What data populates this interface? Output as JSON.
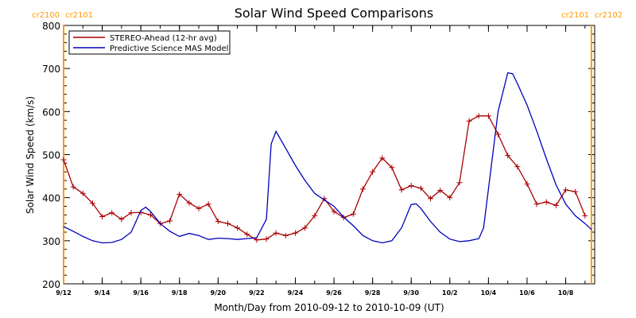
{
  "chart_data": {
    "type": "line",
    "title": "Solar Wind Speed Comparisons",
    "xlabel": "Month/Day from 2010-09-12 to 2010-10-09 (UT)",
    "ylabel": "Solar Wind Speed (km/s)",
    "xlim": [
      "2010-09-12",
      "2010-10-09"
    ],
    "ylim": [
      200,
      800
    ],
    "yticks": [
      200,
      300,
      400,
      500,
      600,
      700,
      800
    ],
    "xticks": [
      {
        "date": "2010-09-12",
        "label": "9/12"
      },
      {
        "date": "2010-09-14",
        "label": "9/14"
      },
      {
        "date": "2010-09-16",
        "label": "9/16"
      },
      {
        "date": "2010-09-18",
        "label": "9/18"
      },
      {
        "date": "2010-09-20",
        "label": "9/20"
      },
      {
        "date": "2010-09-22",
        "label": "9/22"
      },
      {
        "date": "2010-09-24",
        "label": "9/24"
      },
      {
        "date": "2010-09-26",
        "label": "9/26"
      },
      {
        "date": "2010-09-28",
        "label": "9/28"
      },
      {
        "date": "2010-09-30",
        "label": "9/30"
      },
      {
        "date": "2010-10-02",
        "label": "10/2"
      },
      {
        "date": "2010-10-04",
        "label": "10/4"
      },
      {
        "date": "2010-10-06",
        "label": "10/6"
      },
      {
        "date": "2010-10-08",
        "label": "10/8"
      }
    ],
    "grid": false,
    "legend_position": "top-left",
    "carrington_markers": [
      {
        "date": "2010-09-12T00:00",
        "left_label": "cr2100",
        "right_label": "cr2101",
        "color": "#ff9900"
      },
      {
        "date": "2010-10-09T08:00",
        "left_label": "cr2101",
        "right_label": "cr2102",
        "color": "#ff9900"
      }
    ],
    "series": [
      {
        "name": "STEREO-Ahead (12-hr avg)",
        "color": "#aa0000",
        "marker": "+",
        "points": [
          [
            "2010-09-12T00:00",
            488
          ],
          [
            "2010-09-12T12:00",
            425
          ],
          [
            "2010-09-13T00:00",
            410
          ],
          [
            "2010-09-13T12:00",
            387
          ],
          [
            "2010-09-14T00:00",
            356
          ],
          [
            "2010-09-14T12:00",
            365
          ],
          [
            "2010-09-15T00:00",
            350
          ],
          [
            "2010-09-15T12:00",
            365
          ],
          [
            "2010-09-16T00:00",
            366
          ],
          [
            "2010-09-16T12:00",
            360
          ],
          [
            "2010-09-17T00:00",
            340
          ],
          [
            "2010-09-17T12:00",
            346
          ],
          [
            "2010-09-18T00:00",
            408
          ],
          [
            "2010-09-18T12:00",
            388
          ],
          [
            "2010-09-19T00:00",
            375
          ],
          [
            "2010-09-19T12:00",
            385
          ],
          [
            "2010-09-20T00:00",
            345
          ],
          [
            "2010-09-20T12:00",
            340
          ],
          [
            "2010-09-21T00:00",
            330
          ],
          [
            "2010-09-21T12:00",
            315
          ],
          [
            "2010-09-22T00:00",
            302
          ],
          [
            "2010-09-22T12:00",
            304
          ],
          [
            "2010-09-23T00:00",
            318
          ],
          [
            "2010-09-23T12:00",
            312
          ],
          [
            "2010-09-24T00:00",
            318
          ],
          [
            "2010-09-24T12:00",
            330
          ],
          [
            "2010-09-25T00:00",
            358
          ],
          [
            "2010-09-25T12:00",
            398
          ],
          [
            "2010-09-26T00:00",
            368
          ],
          [
            "2010-09-26T12:00",
            354
          ],
          [
            "2010-09-27T00:00",
            362
          ],
          [
            "2010-09-27T12:00",
            420
          ],
          [
            "2010-09-28T00:00",
            460
          ],
          [
            "2010-09-28T12:00",
            492
          ],
          [
            "2010-09-29T00:00",
            470
          ],
          [
            "2010-09-29T12:00",
            418
          ],
          [
            "2010-09-30T00:00",
            428
          ],
          [
            "2010-09-30T12:00",
            422
          ],
          [
            "2010-10-01T00:00",
            398
          ],
          [
            "2010-10-01T12:00",
            417
          ],
          [
            "2010-10-02T00:00",
            400
          ],
          [
            "2010-10-02T12:00",
            435
          ],
          [
            "2010-10-03T00:00",
            578
          ],
          [
            "2010-10-03T12:00",
            590
          ],
          [
            "2010-10-04T00:00",
            590
          ],
          [
            "2010-10-04T12:00",
            547
          ],
          [
            "2010-10-05T00:00",
            498
          ],
          [
            "2010-10-05T12:00",
            472
          ],
          [
            "2010-10-06T00:00",
            432
          ],
          [
            "2010-10-06T12:00",
            385
          ],
          [
            "2010-10-07T00:00",
            390
          ],
          [
            "2010-10-07T12:00",
            382
          ],
          [
            "2010-10-08T00:00",
            418
          ],
          [
            "2010-10-08T12:00",
            414
          ],
          [
            "2010-10-09T00:00",
            358
          ]
        ]
      },
      {
        "name": "Predictive Science MAS Model",
        "color": "#0000bb",
        "marker": "none",
        "points": [
          [
            "2010-09-12T00:00",
            333
          ],
          [
            "2010-09-12T12:00",
            322
          ],
          [
            "2010-09-13T00:00",
            310
          ],
          [
            "2010-09-13T12:00",
            300
          ],
          [
            "2010-09-14T00:00",
            295
          ],
          [
            "2010-09-14T12:00",
            296
          ],
          [
            "2010-09-15T00:00",
            303
          ],
          [
            "2010-09-15T12:00",
            320
          ],
          [
            "2010-09-16T00:00",
            370
          ],
          [
            "2010-09-16T06:00",
            378
          ],
          [
            "2010-09-16T12:00",
            368
          ],
          [
            "2010-09-17T00:00",
            340
          ],
          [
            "2010-09-17T12:00",
            322
          ],
          [
            "2010-09-18T00:00",
            310
          ],
          [
            "2010-09-18T12:00",
            317
          ],
          [
            "2010-09-19T00:00",
            312
          ],
          [
            "2010-09-19T12:00",
            303
          ],
          [
            "2010-09-20T00:00",
            306
          ],
          [
            "2010-09-20T12:00",
            305
          ],
          [
            "2010-09-21T00:00",
            303
          ],
          [
            "2010-09-21T12:00",
            305
          ],
          [
            "2010-09-22T00:00",
            307
          ],
          [
            "2010-09-22T12:00",
            350
          ],
          [
            "2010-09-22T18:00",
            525
          ],
          [
            "2010-09-23T00:00",
            554
          ],
          [
            "2010-09-23T12:00",
            515
          ],
          [
            "2010-09-24T00:00",
            475
          ],
          [
            "2010-09-24T12:00",
            440
          ],
          [
            "2010-09-25T00:00",
            410
          ],
          [
            "2010-09-25T12:00",
            395
          ],
          [
            "2010-09-26T00:00",
            380
          ],
          [
            "2010-09-26T12:00",
            355
          ],
          [
            "2010-09-27T00:00",
            335
          ],
          [
            "2010-09-27T12:00",
            312
          ],
          [
            "2010-09-28T00:00",
            300
          ],
          [
            "2010-09-28T12:00",
            295
          ],
          [
            "2010-09-29T00:00",
            300
          ],
          [
            "2010-09-29T12:00",
            330
          ],
          [
            "2010-09-30T00:00",
            384
          ],
          [
            "2010-09-30T06:00",
            386
          ],
          [
            "2010-09-30T12:00",
            375
          ],
          [
            "2010-10-01T00:00",
            345
          ],
          [
            "2010-10-01T12:00",
            320
          ],
          [
            "2010-10-02T00:00",
            304
          ],
          [
            "2010-10-02T12:00",
            298
          ],
          [
            "2010-10-03T00:00",
            300
          ],
          [
            "2010-10-03T12:00",
            305
          ],
          [
            "2010-10-03T18:00",
            330
          ],
          [
            "2010-10-04T00:00",
            420
          ],
          [
            "2010-10-04T12:00",
            600
          ],
          [
            "2010-10-05T00:00",
            690
          ],
          [
            "2010-10-05T06:00",
            688
          ],
          [
            "2010-10-05T12:00",
            665
          ],
          [
            "2010-10-06T00:00",
            615
          ],
          [
            "2010-10-06T12:00",
            555
          ],
          [
            "2010-10-07T00:00",
            490
          ],
          [
            "2010-10-07T12:00",
            430
          ],
          [
            "2010-10-08T00:00",
            385
          ],
          [
            "2010-10-08T12:00",
            358
          ],
          [
            "2010-10-09T00:00",
            340
          ],
          [
            "2010-10-09T08:00",
            326
          ]
        ]
      }
    ]
  }
}
